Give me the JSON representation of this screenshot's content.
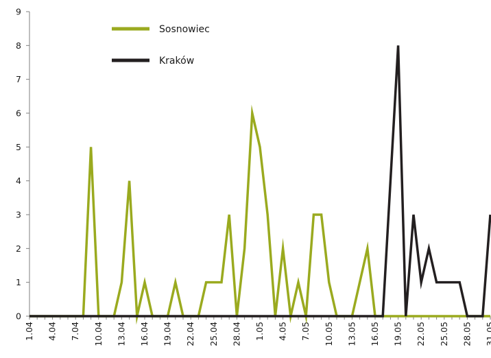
{
  "chart_data": {
    "type": "line",
    "title": "",
    "xlabel": "",
    "ylabel": "",
    "ylim": [
      0,
      9
    ],
    "yticks": [
      0,
      1,
      2,
      3,
      4,
      5,
      6,
      7,
      8,
      9
    ],
    "grid": false,
    "legend_position": "top-left",
    "x": [
      "1.04",
      "2.04",
      "3.04",
      "4.04",
      "5.04",
      "6.04",
      "7.04",
      "8.04",
      "9.04",
      "10.04",
      "11.04",
      "12.04",
      "13.04",
      "14.04",
      "15.04",
      "16.04",
      "17.04",
      "18.04",
      "19.04",
      "20.04",
      "21.04",
      "22.04",
      "23.04",
      "24.04",
      "25.04",
      "26.04",
      "27.04",
      "28.04",
      "29.04",
      "30.04",
      "1.05",
      "2.05",
      "3.05",
      "4.05",
      "5.05",
      "6.05",
      "7.05",
      "8.05",
      "9.05",
      "10.05",
      "11.05",
      "12.05",
      "13.05",
      "14.05",
      "15.05",
      "16.05",
      "17.05",
      "18.05",
      "19.05",
      "20.05",
      "21.05",
      "22.05",
      "23.05",
      "24.05",
      "25.05",
      "26.05",
      "27.05",
      "28.05",
      "29.05",
      "30.05",
      "31.05"
    ],
    "x_tick_labels": [
      "1.04",
      "4.04",
      "7.04",
      "10.04",
      "13.04",
      "16.04",
      "19.04",
      "22.04",
      "25.04",
      "28.04",
      "1.05",
      "4.05",
      "7.05",
      "10.05",
      "13.05",
      "16.05",
      "19.05",
      "22.05",
      "25.05",
      "28.05",
      "31.05"
    ],
    "series": [
      {
        "name": "Sosnowiec",
        "color": "#9aaa1f",
        "values": [
          0,
          0,
          0,
          0,
          0,
          0,
          0,
          0,
          5,
          0,
          0,
          0,
          1,
          4,
          0,
          1,
          0,
          0,
          0,
          1,
          0,
          0,
          0,
          1,
          1,
          1,
          3,
          0,
          2,
          6,
          5,
          3,
          0,
          2,
          0,
          1,
          0,
          3,
          3,
          1,
          0,
          0,
          0,
          1,
          2,
          0,
          0,
          0,
          0,
          0,
          0,
          0,
          0,
          0,
          0,
          0,
          0,
          0,
          0,
          0,
          0
        ]
      },
      {
        "name": "Kraków",
        "color": "#231f20",
        "values": [
          0,
          0,
          0,
          0,
          0,
          0,
          0,
          0,
          0,
          0,
          0,
          0,
          0,
          0,
          0,
          0,
          0,
          0,
          0,
          0,
          0,
          0,
          0,
          0,
          0,
          0,
          0,
          0,
          0,
          0,
          0,
          0,
          0,
          0,
          0,
          0,
          0,
          0,
          0,
          0,
          0,
          0,
          0,
          0,
          0,
          0,
          0,
          4,
          8,
          0,
          3,
          1,
          2,
          1,
          1,
          1,
          1,
          0,
          0,
          0,
          3
        ]
      }
    ]
  }
}
